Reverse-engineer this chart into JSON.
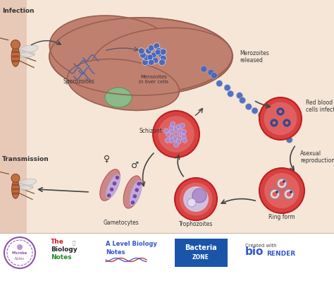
{
  "bg_color": "#f5e6d8",
  "left_panel_color": "#e8c9b8",
  "liver_color": "#c08070",
  "liver_highlight": "#8aba8a",
  "rbc_outer": "#d94040",
  "rbc_inner": "#e06060",
  "arrow_color": "#444444",
  "text_color": "#333333",
  "dot_color": "#4466bb",
  "footer_color": "#ffffff",
  "infection_label": "Infection",
  "transmission_label": "Transmission",
  "sporozoites_label": "Sporozoites",
  "merozoites_liver_label": "Merozoites\nin liver cells",
  "merozoites_released_label": "Merozoites\nreleased",
  "rbc_label": "Red blood\ncells infected",
  "schizont_label": "Schizont",
  "asexual_label": "Asexual\nreproduction",
  "ring_label": "Ring form",
  "trophozoites_label": "Trophozoites",
  "gametocytes_label": "Gametocytes"
}
